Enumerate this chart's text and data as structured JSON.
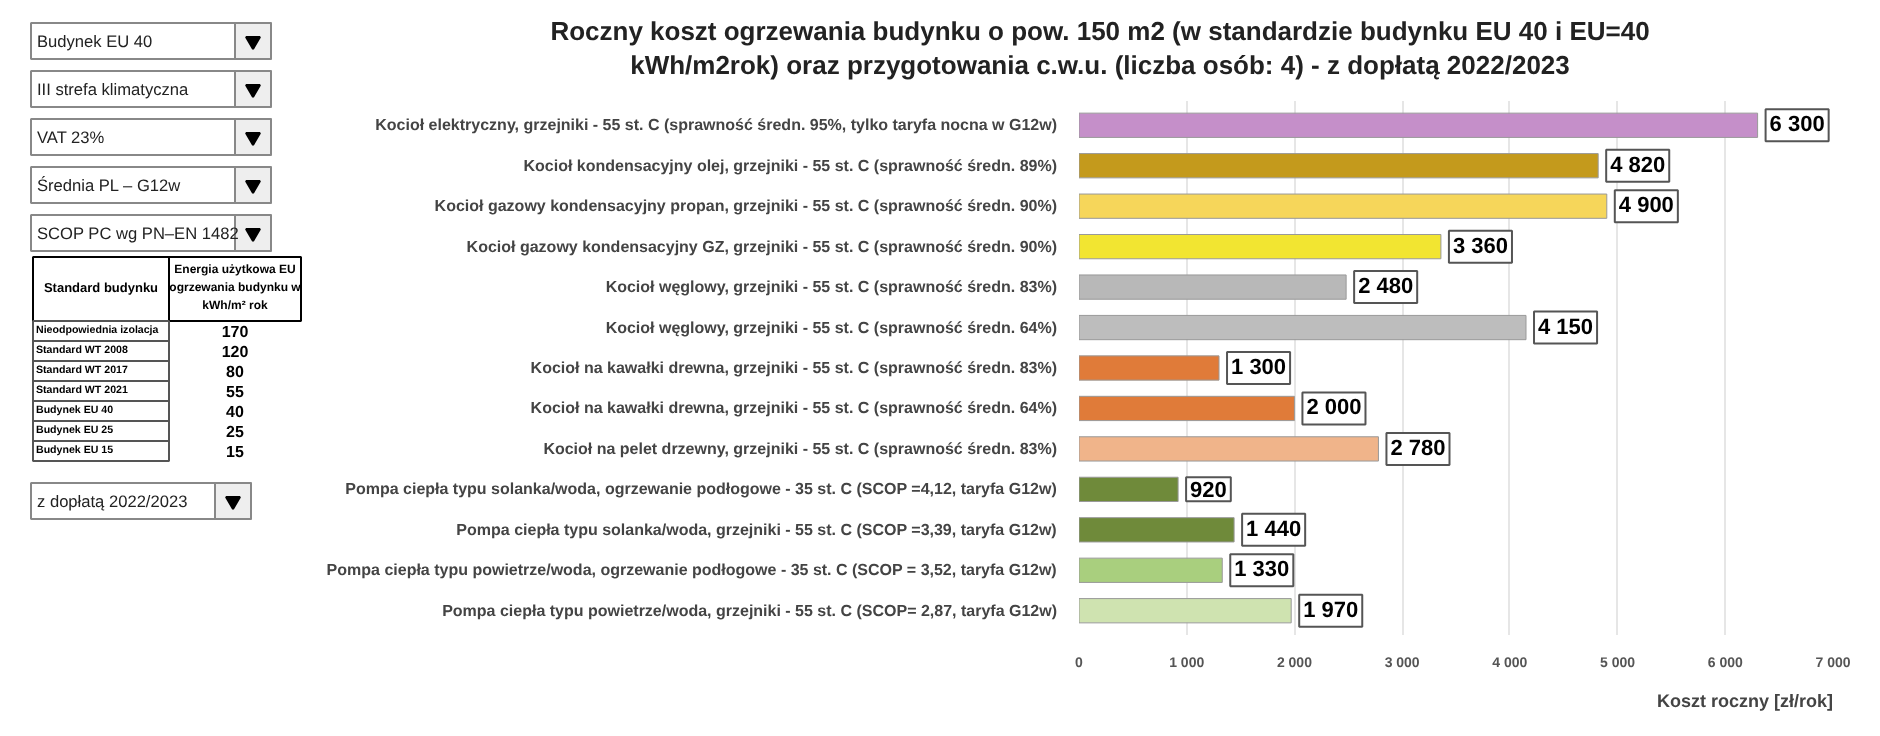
{
  "chart_data": [
    {
      "type": "other",
      "annotations": [
        "Budynek EU 40",
        "III strefa klimatyczna",
        "VAT 23%",
        "Średnia PL – G12w",
        "SCOP PC wg PN–EN 1482",
        "z dopłatą 2022/2023"
      ],
      "xlabel": "Standard budynku",
      "ylabel": "Energia użytkowa EU ogrzewania budynku w kWh/m² rok",
      "categories": [
        "Nieodpowiednia izolacja",
        "Standard WT 2008",
        "Standard WT 2017",
        "Standard WT 2021",
        "Budynek EU 40",
        "Budynek EU 25",
        "Budynek EU 15"
      ],
      "values": [
        170,
        120,
        80,
        55,
        40,
        25,
        15
      ],
      "data_labels": true
    },
    {
      "type": "bar",
      "orientation": "horizontal",
      "title": "Roczny koszt ogrzewania budynku o pow. 150 m2 (w standardzie budynku EU 40 i EU=40 kWh/m2rok) oraz przygotowania c.w.u. (liczba osób: 4) - z dopłatą 2022/2023",
      "xlabel": "Koszt roczny [zł/rok]",
      "categories": [
        "Kocioł elektryczny, grzejniki - 55 st. C (sprawność średn. 95%, tylko taryfa nocna w G12w)",
        "Kocioł kondensacyjny olej, grzejniki - 55 st. C (sprawność średn. 89%)",
        "Kocioł gazowy kondensacyjny propan, grzejniki - 55 st. C (sprawność średn. 90%)",
        "Kocioł gazowy kondensacyjny GZ, grzejniki - 55 st. C (sprawność średn. 90%)",
        "Kocioł węglowy, grzejniki - 55 st. C (sprawność średn. 83%)",
        "Kocioł węglowy, grzejniki - 55 st. C (sprawność średn. 64%)",
        "Kocioł na kawałki drewna, grzejniki - 55 st. C (sprawność średn. 83%)",
        "Kocioł na kawałki drewna, grzejniki - 55 st. C (sprawność średn. 64%)",
        "Kocioł na pelet drzewny, grzejniki - 55 st. C (sprawność średn. 83%)",
        "Pompa ciepła typu solanka/woda, ogrzewanie podłogowe - 35 st. C (SCOP =4,12, taryfa G12w)",
        "Pompa ciepła typu solanka/woda, grzejniki - 55 st. C (SCOP =3,39, taryfa G12w)",
        "Pompa ciepła typu powietrze/woda, ogrzewanie podłogowe - 35 st. C (SCOP = 3,52, taryfa G12w)",
        "Pompa ciepła typu powietrze/woda, grzejniki - 55 st. C (SCOP= 2,87, taryfa G12w)"
      ],
      "values": [
        6300,
        4820,
        4900,
        3360,
        2480,
        4150,
        1300,
        2000,
        2780,
        920,
        1440,
        1330,
        1970
      ],
      "value_labels": [
        "6 300",
        "4 820",
        "4 900",
        "3 360",
        "2 480",
        "4 150",
        "1 300",
        "2 000",
        "2 780",
        "920",
        "1 440",
        "1 330",
        "1 970"
      ],
      "colors": [
        "#c58fc9",
        "#c49a1c",
        "#f6d65a",
        "#f2e531",
        "#b8b8b8",
        "#bdbdbd",
        "#e07b39",
        "#e07b39",
        "#f0b48a",
        "#6f8a3a",
        "#6f8a3a",
        "#a9cf7e",
        "#cfe3b0"
      ],
      "xlim": [
        0,
        7000
      ],
      "xticks": [
        0,
        {
          "value": 1000,
          "label": "1 000"
        },
        {
          "value": 2000,
          "label": "2 000"
        },
        {
          "value": 3000,
          "label": "3 000"
        },
        {
          "value": 4000,
          "label": "4 000"
        },
        {
          "value": 5000,
          "label": "5 000"
        },
        {
          "value": 6000,
          "label": "6 000"
        },
        {
          "value": 7000,
          "label": "7 000"
        }
      ],
      "grid": "x"
    }
  ]
}
